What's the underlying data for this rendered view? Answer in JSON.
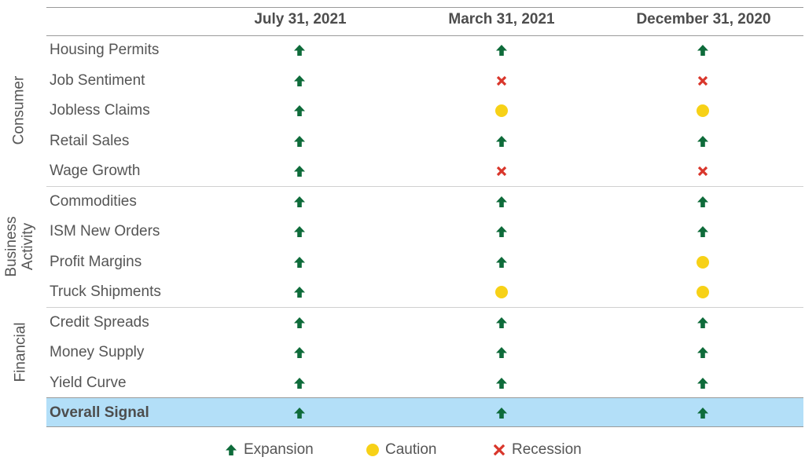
{
  "chart_data": {
    "type": "table",
    "columns": [
      "July 31, 2021",
      "March 31, 2021",
      "December 31, 2020"
    ],
    "groups": [
      {
        "name": "Consumer",
        "rows": [
          {
            "label": "Housing Permits",
            "values": [
              "Expansion",
              "Expansion",
              "Expansion"
            ]
          },
          {
            "label": "Job Sentiment",
            "values": [
              "Expansion",
              "Recession",
              "Recession"
            ]
          },
          {
            "label": "Jobless Claims",
            "values": [
              "Expansion",
              "Caution",
              "Caution"
            ]
          },
          {
            "label": "Retail Sales",
            "values": [
              "Expansion",
              "Expansion",
              "Expansion"
            ]
          },
          {
            "label": "Wage Growth",
            "values": [
              "Expansion",
              "Recession",
              "Recession"
            ]
          }
        ]
      },
      {
        "name": "Business Activity",
        "name_lines": [
          "Business",
          "Activity"
        ],
        "rows": [
          {
            "label": "Commodities",
            "values": [
              "Expansion",
              "Expansion",
              "Expansion"
            ]
          },
          {
            "label": "ISM New Orders",
            "values": [
              "Expansion",
              "Expansion",
              "Expansion"
            ]
          },
          {
            "label": "Profit Margins",
            "values": [
              "Expansion",
              "Expansion",
              "Caution"
            ]
          },
          {
            "label": "Truck Shipments",
            "values": [
              "Expansion",
              "Caution",
              "Caution"
            ]
          }
        ]
      },
      {
        "name": "Financial",
        "rows": [
          {
            "label": "Credit Spreads",
            "values": [
              "Expansion",
              "Expansion",
              "Expansion"
            ]
          },
          {
            "label": "Money Supply",
            "values": [
              "Expansion",
              "Expansion",
              "Expansion"
            ]
          },
          {
            "label": "Yield Curve",
            "values": [
              "Expansion",
              "Expansion",
              "Expansion"
            ]
          }
        ]
      }
    ],
    "overall": {
      "label": "Overall Signal",
      "values": [
        "Expansion",
        "Expansion",
        "Expansion"
      ]
    },
    "legend": [
      {
        "signal": "Expansion",
        "label": "Expansion",
        "icon": "up-arrow-icon"
      },
      {
        "signal": "Caution",
        "label": "Caution",
        "icon": "circle-icon"
      },
      {
        "signal": "Recession",
        "label": "Recession",
        "icon": "x-cross-icon"
      }
    ],
    "legend_placement": "bottom-center",
    "colors": {
      "expansion": "#0e6b3a",
      "caution": "#f7d117",
      "recession": "#d9362b",
      "highlight": "#b3dff8"
    }
  }
}
